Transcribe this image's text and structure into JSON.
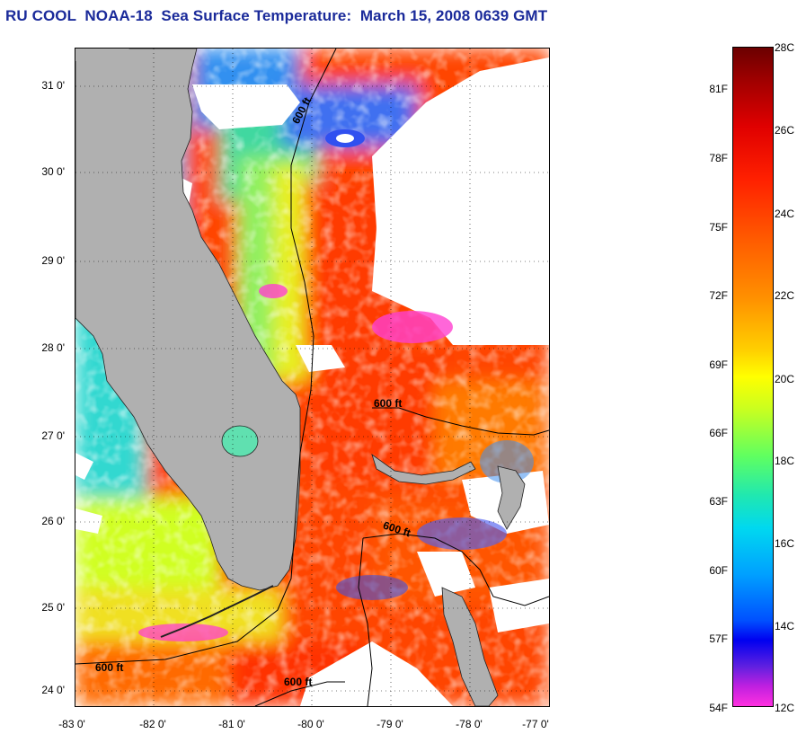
{
  "title": "RU COOL  NOAA-18  Sea Surface Temperature:  March 15, 2008 0639 GMT",
  "lat_ticks": [
    "31 0'",
    "30 0'",
    "29 0'",
    "28 0'",
    "27 0'",
    "26 0'",
    "25 0'",
    "24 0'"
  ],
  "lon_ticks": [
    "-83 0'",
    "-82 0'",
    "-81 0'",
    "-80 0'",
    "-79 0'",
    "-78 0'",
    "-77 0'"
  ],
  "contour_labels": [
    "600 ft",
    "600 ft",
    "600 ft",
    "600 ft",
    "600 ft"
  ],
  "colorbar": {
    "celsius": [
      "28C",
      "26C",
      "24C",
      "22C",
      "20C",
      "18C",
      "16C",
      "14C",
      "12C"
    ],
    "fahrenheit": [
      "81F",
      "78F",
      "75F",
      "72F",
      "69F",
      "66F",
      "63F",
      "60F",
      "57F",
      "54F"
    ]
  },
  "colors": {
    "title": "#1a2a9a",
    "land": "#b0b0b0",
    "cloud": "#ffffff"
  }
}
